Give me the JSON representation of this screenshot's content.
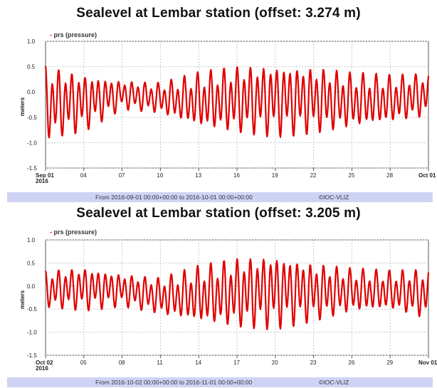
{
  "chart_data": [
    {
      "type": "line",
      "title": "Sealevel at Lembar station (offset: 3.274 m)",
      "legend": "prs (pressure)",
      "legend_placement": "top-left",
      "ylabel": "meters",
      "ylim": [
        -1.5,
        1.0
      ],
      "yticks": [
        "1.0",
        "0.5",
        "0.0",
        "-0.5",
        "-1.0",
        "-1.5"
      ],
      "yvalues": [
        1.0,
        0.5,
        0.0,
        -0.5,
        -1.0,
        -1.5
      ],
      "xticks": [
        {
          "day": 0,
          "label": "Sep 01",
          "sub": "2016"
        },
        {
          "day": 3,
          "label": "04"
        },
        {
          "day": 6,
          "label": "07"
        },
        {
          "day": 9,
          "label": "10"
        },
        {
          "day": 12,
          "label": "13"
        },
        {
          "day": 15,
          "label": "16"
        },
        {
          "day": 18,
          "label": "19"
        },
        {
          "day": 21,
          "label": "22"
        },
        {
          "day": 24,
          "label": "25"
        },
        {
          "day": 27,
          "label": "28"
        },
        {
          "day": 30,
          "label": "Oct 01"
        }
      ],
      "days": 30,
      "grid": true,
      "series_color": "#e00000",
      "footer_range": "From 2016-09-01 00:00+00:00 to 2016-10-01 00:00+00:00",
      "footer_brand": "©IOC-VLIZ",
      "envelope": {
        "days": [
          0,
          3,
          6,
          9,
          12,
          15,
          18,
          21,
          24,
          27,
          30
        ],
        "high": [
          0.55,
          0.4,
          0.25,
          0.2,
          0.4,
          0.55,
          0.6,
          0.55,
          0.4,
          0.35,
          0.4
        ],
        "low": [
          -1.0,
          -0.8,
          -0.35,
          -0.45,
          -0.75,
          -0.85,
          -0.9,
          -0.85,
          -0.75,
          -0.65,
          -0.5
        ]
      }
    },
    {
      "type": "line",
      "title": "Sealevel at Lembar station (offset: 3.205 m)",
      "legend": "prs (pressure)",
      "legend_placement": "top-left",
      "ylabel": "meters",
      "ylim": [
        -1.5,
        1.0
      ],
      "yticks": [
        "1.0",
        "0.5",
        "0.0",
        "-0.5",
        "-1.0",
        "-1.5"
      ],
      "yvalues": [
        1.0,
        0.5,
        0.0,
        -0.5,
        -1.0,
        -1.5
      ],
      "xticks": [
        {
          "day": 0,
          "label": "Oct 02",
          "sub": "2016"
        },
        {
          "day": 3,
          "label": "05"
        },
        {
          "day": 6,
          "label": "08"
        },
        {
          "day": 9,
          "label": "11"
        },
        {
          "day": 12,
          "label": "14"
        },
        {
          "day": 15,
          "label": "17"
        },
        {
          "day": 18,
          "label": "20"
        },
        {
          "day": 21,
          "label": "23"
        },
        {
          "day": 24,
          "label": "26"
        },
        {
          "day": 27,
          "label": "29"
        },
        {
          "day": 30,
          "label": "Nov 01"
        }
      ],
      "days": 30,
      "grid": true,
      "series_color": "#e00000",
      "footer_range": "From 2016-10-02 00:00+00:00 to 2016-11-01 00:00+00:00",
      "footer_brand": "©IOC-VLIZ",
      "envelope": {
        "days": [
          0,
          3,
          6,
          9,
          12,
          15,
          18,
          21,
          24,
          27,
          30
        ],
        "high": [
          0.35,
          0.45,
          0.3,
          0.2,
          0.45,
          0.65,
          0.75,
          0.55,
          0.4,
          0.35,
          0.4
        ],
        "low": [
          -0.5,
          -0.55,
          -0.45,
          -0.65,
          -0.85,
          -0.95,
          -0.95,
          -0.8,
          -0.6,
          -0.55,
          -0.75
        ]
      }
    }
  ]
}
